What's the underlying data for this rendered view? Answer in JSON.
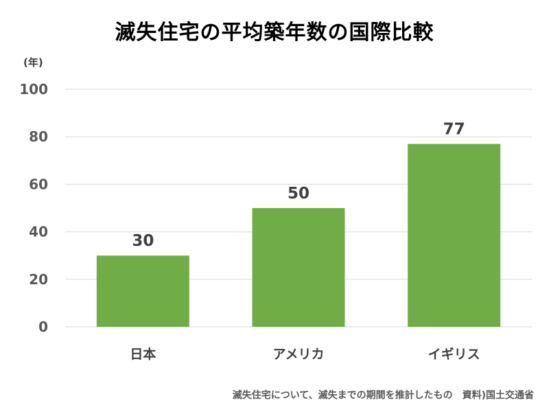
{
  "chart_data": {
    "type": "bar",
    "title": "滅失住宅の平均築年数の国際比較",
    "ylabel": "(年)",
    "xlabel": "",
    "categories": [
      "日本",
      "アメリカ",
      "イギリス"
    ],
    "values": [
      30,
      50,
      77
    ],
    "data_labels": [
      "30",
      "50",
      "77"
    ],
    "ylim": [
      0,
      100
    ],
    "yticks": [
      0,
      20,
      40,
      60,
      80,
      100
    ],
    "grid": true,
    "legend": "none",
    "bar_color": "#70ad47",
    "gridline_color": "#d9d9d9",
    "annotation": "滅失住宅について、滅失までの期間を推計したもの　資料)国土交通省"
  }
}
